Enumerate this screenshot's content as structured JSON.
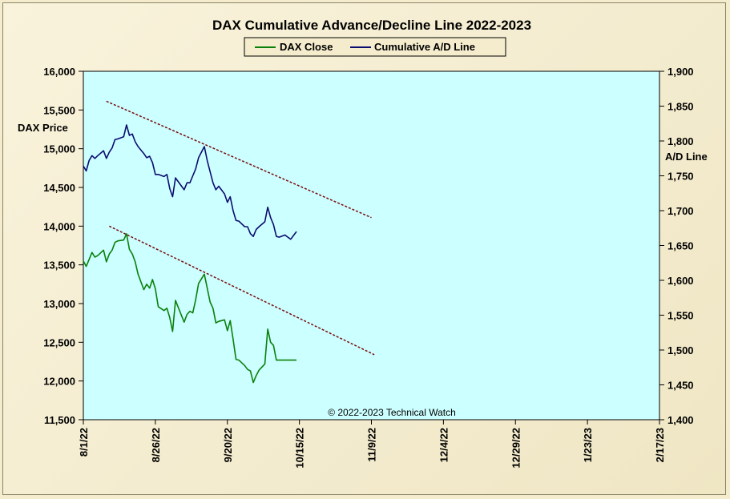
{
  "chart_data": {
    "type": "line",
    "title": "DAX Cumulative Advance/Decline Line 2022-2023",
    "left_ylabel": "DAX Price",
    "right_ylabel": "A/D Line",
    "copyright": "© 2022-2023 Technical Watch",
    "left_ylim": [
      11500,
      16000
    ],
    "right_ylim": [
      1400,
      1900
    ],
    "left_ticks": [
      "11,500",
      "12,000",
      "12,500",
      "13,000",
      "13,500",
      "14,000",
      "14,500",
      "15,000",
      "15,500",
      "16,000"
    ],
    "right_ticks": [
      "1,400",
      "1,450",
      "1,500",
      "1,550",
      "1,600",
      "1,650",
      "1,700",
      "1,750",
      "1,800",
      "1,850",
      "1,900"
    ],
    "x_tick_labels": [
      "8/1/22",
      "8/26/22",
      "9/20/22",
      "10/15/22",
      "11/9/22",
      "12/4/22",
      "12/29/22",
      "1/23/23",
      "2/17/23"
    ],
    "x_tick_days": [
      0,
      25,
      50,
      75,
      100,
      125,
      150,
      175,
      200
    ],
    "x_start": "2022-08-01",
    "x_end": "2023-02-17",
    "grid": false,
    "legend_position": "top-center",
    "plot_background": "#ccffff",
    "series": [
      {
        "name": "DAX Close",
        "axis": "left",
        "color": "#0a800a",
        "x": [
          0,
          1,
          2,
          3,
          4,
          5,
          7,
          8,
          9,
          10,
          11,
          12,
          14,
          15,
          16,
          17,
          18,
          19,
          21,
          22,
          23,
          24,
          25,
          26,
          28,
          29,
          30,
          31,
          32,
          35,
          36,
          37,
          38,
          39,
          40,
          42,
          43,
          44,
          45,
          46,
          47,
          49,
          50,
          51,
          52,
          53,
          54,
          56,
          57,
          58,
          59,
          60,
          61,
          63,
          64,
          65,
          66,
          67,
          68,
          70,
          71,
          72,
          74
        ],
        "values": [
          13550,
          13480,
          13570,
          13660,
          13600,
          13620,
          13690,
          13540,
          13640,
          13690,
          13790,
          13810,
          13820,
          13900,
          13700,
          13640,
          13540,
          13380,
          13180,
          13250,
          13200,
          13310,
          13190,
          12960,
          12910,
          12940,
          12820,
          12640,
          13040,
          12760,
          12860,
          12900,
          12880,
          13050,
          13260,
          13380,
          13200,
          13020,
          12940,
          12750,
          12770,
          12790,
          12650,
          12780,
          12540,
          12280,
          12270,
          12200,
          12150,
          12130,
          11980,
          12070,
          12140,
          12220,
          12670,
          12500,
          12460,
          12270,
          12270,
          12270,
          12270,
          12270,
          12270
        ]
      },
      {
        "name": "Cumulative A/D Line",
        "axis": "right",
        "color": "#0c0c70",
        "x": [
          0,
          1,
          2,
          3,
          4,
          5,
          7,
          8,
          9,
          10,
          11,
          12,
          14,
          15,
          16,
          17,
          18,
          19,
          21,
          22,
          23,
          24,
          25,
          26,
          28,
          29,
          30,
          31,
          32,
          35,
          36,
          37,
          38,
          39,
          40,
          42,
          43,
          44,
          45,
          46,
          47,
          49,
          50,
          51,
          52,
          53,
          54,
          56,
          57,
          58,
          59,
          60,
          61,
          63,
          64,
          65,
          66,
          67,
          68,
          70,
          71,
          72,
          74
        ],
        "values": [
          1764,
          1757,
          1772,
          1779,
          1775,
          1779,
          1786,
          1775,
          1784,
          1790,
          1802,
          1803,
          1806,
          1823,
          1808,
          1810,
          1799,
          1792,
          1782,
          1776,
          1778,
          1769,
          1752,
          1752,
          1749,
          1752,
          1732,
          1720,
          1747,
          1730,
          1740,
          1740,
          1750,
          1760,
          1776,
          1792,
          1772,
          1756,
          1740,
          1730,
          1735,
          1724,
          1712,
          1720,
          1700,
          1686,
          1685,
          1677,
          1677,
          1667,
          1663,
          1673,
          1677,
          1684,
          1705,
          1690,
          1680,
          1663,
          1662,
          1665,
          1662,
          1659,
          1670
        ]
      }
    ],
    "trendlines": [
      {
        "axis": "right",
        "color": "#7a0a0a",
        "x": [
          8,
          100
        ],
        "values": [
          1857,
          1690
        ]
      },
      {
        "axis": "left",
        "color": "#7a0a0a",
        "x": [
          9,
          101
        ],
        "values": [
          14000,
          12340
        ]
      }
    ]
  }
}
